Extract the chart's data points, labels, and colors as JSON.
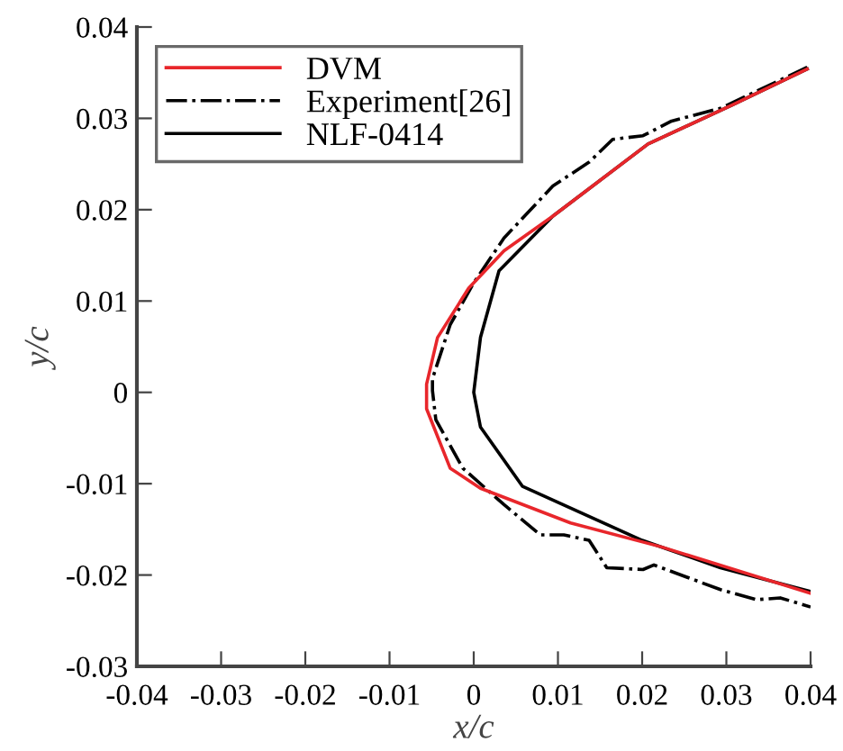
{
  "chart_data": {
    "type": "line",
    "xlabel": "x/c",
    "ylabel": "y/c",
    "xlim": [
      -0.04,
      0.04
    ],
    "ylim": [
      -0.03,
      0.04
    ],
    "xticks": [
      -0.04,
      -0.03,
      -0.02,
      -0.01,
      0,
      0.01,
      0.02,
      0.03,
      0.04
    ],
    "yticks": [
      -0.03,
      -0.02,
      -0.01,
      0,
      0.01,
      0.02,
      0.03,
      0.04
    ],
    "grid": false,
    "legend": "top left",
    "marker": "none",
    "series": [
      {
        "name": "DVM",
        "color": "#e8262b",
        "line_style": "solid",
        "x": [
          0.0396,
          0.0308,
          0.0207,
          0.0094,
          0.0036,
          -0.0006,
          -0.0043,
          -0.0056,
          -0.0056,
          -0.0028,
          0.0008,
          0.0115,
          0.0222,
          0.04
        ],
        "values": [
          0.0354,
          0.0315,
          0.0272,
          0.0193,
          0.0155,
          0.0114,
          0.006,
          0.0009,
          -0.0018,
          -0.0083,
          -0.0105,
          -0.0143,
          -0.0169,
          -0.022
        ]
      },
      {
        "name": "Experiment[26]",
        "color": "#000000",
        "line_style": "dashdot",
        "x": [
          0.0396,
          0.0293,
          0.0235,
          0.0201,
          0.0165,
          0.0137,
          0.0094,
          0.0036,
          0,
          -0.0028,
          -0.0049,
          -0.0049,
          -0.0045,
          -0.0013,
          0.0036,
          0.0079,
          0.0107,
          0.0137,
          0.0158,
          0.0201,
          0.0214,
          0.0293,
          0.0336,
          0.0364,
          0.04
        ],
        "values": [
          0.0356,
          0.0311,
          0.0297,
          0.0281,
          0.0277,
          0.0252,
          0.0226,
          0.0169,
          0.012,
          0.0074,
          0.0015,
          0.0002,
          -0.003,
          -0.0083,
          -0.0123,
          -0.0156,
          -0.0156,
          -0.0162,
          -0.0192,
          -0.0194,
          -0.0189,
          -0.0216,
          -0.0227,
          -0.0225,
          -0.0235
        ]
      },
      {
        "name": "NLF-0414",
        "color": "#000000",
        "line_style": "solid",
        "x": [
          0.0396,
          0.0308,
          0.0207,
          0.0094,
          0.003,
          0.0008,
          0,
          0.0008,
          0.0058,
          0.02,
          0.0293,
          0.04
        ],
        "values": [
          0.0354,
          0.0315,
          0.0272,
          0.0193,
          0.0133,
          0.006,
          0,
          -0.0038,
          -0.0103,
          -0.0162,
          -0.0192,
          -0.0218
        ]
      }
    ]
  }
}
